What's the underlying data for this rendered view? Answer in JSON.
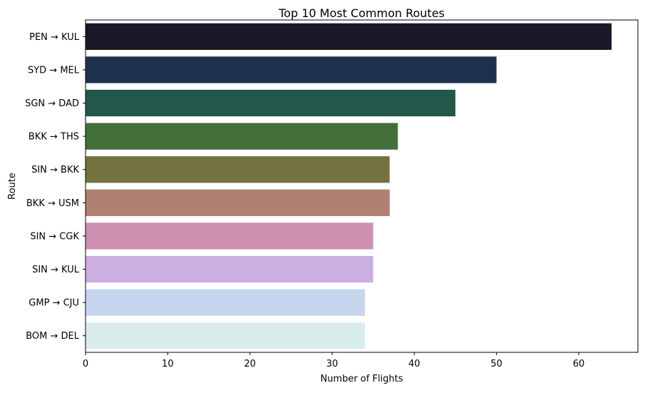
{
  "chart_data": {
    "type": "bar",
    "orientation": "horizontal",
    "title": "Top 10 Most Common Routes",
    "xlabel": "Number of Flights",
    "ylabel": "Route",
    "categories": [
      "PEN → KUL",
      "SYD → MEL",
      "SGN → DAD",
      "BKK → THS",
      "SIN → BKK",
      "BKK → USM",
      "SIN → CGK",
      "SIN → KUL",
      "GMP → CJU",
      "BOM → DEL"
    ],
    "values": [
      64,
      50,
      45,
      38,
      37,
      37,
      35,
      35,
      34,
      34
    ],
    "colors": [
      "#1b1727",
      "#1f324d",
      "#22574a",
      "#426f3a",
      "#74733f",
      "#b08070",
      "#cc8fb0",
      "#cbafe2",
      "#c7d6ef",
      "#d9edeb"
    ],
    "xlim": [
      0,
      67.2
    ],
    "xticks": [
      0,
      10,
      20,
      30,
      40,
      50,
      60
    ],
    "grid": false,
    "legend": "none"
  }
}
